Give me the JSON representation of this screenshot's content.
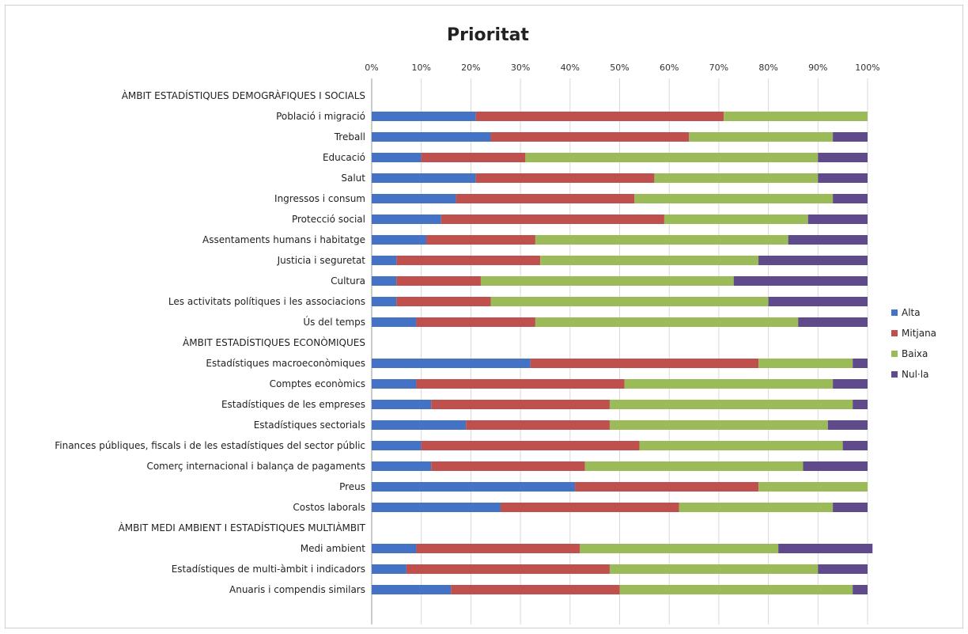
{
  "chart_data": {
    "type": "bar",
    "orientation": "horizontal",
    "stacked": true,
    "percent": true,
    "title": "Prioritat",
    "xlim": [
      0,
      100
    ],
    "x_ticks": [
      "0%",
      "10%",
      "20%",
      "30%",
      "40%",
      "50%",
      "60%",
      "70%",
      "80%",
      "90%",
      "100%"
    ],
    "grid": true,
    "legend_position": "right",
    "rows": [
      {
        "label": "ÀMBIT ESTADÍSTIQUES DEMOGRÀFIQUES I SOCIALS",
        "header": true
      },
      {
        "label": "Població i migració"
      },
      {
        "label": "Treball"
      },
      {
        "label": "Educació"
      },
      {
        "label": "Salut"
      },
      {
        "label": "Ingressos i consum"
      },
      {
        "label": "Protecció social"
      },
      {
        "label": "Assentaments humans i habitatge"
      },
      {
        "label": "Justicia i seguretat"
      },
      {
        "label": "Cultura"
      },
      {
        "label": "Les activitats polítiques i les associacions"
      },
      {
        "label": "Ús del temps"
      },
      {
        "label": "ÀMBIT ESTADÍSTIQUES ECONÒMIQUES",
        "header": true
      },
      {
        "label": "Estadístiques macroeconòmiques"
      },
      {
        "label": "Comptes econòmics"
      },
      {
        "label": "Estadístiques de les empreses"
      },
      {
        "label": "Estadístiques sectorials"
      },
      {
        "label": "Finances públiques, fiscals i de les estadístiques del sector públic"
      },
      {
        "label": "Comerç internacional i balança de pagaments"
      },
      {
        "label": "Preus"
      },
      {
        "label": "Costos laborals"
      },
      {
        "label": "ÀMBIT MEDI AMBIENT I ESTADÍSTIQUES MULTIÀMBIT",
        "header": true
      },
      {
        "label": "Medi ambient"
      },
      {
        "label": "Estadístiques de multi-àmbit i indicadors"
      },
      {
        "label": "Anuaris i compendis similars"
      }
    ],
    "series": [
      {
        "name": "Alta",
        "color": "#4472C4",
        "values": [
          null,
          21,
          24,
          10,
          21,
          17,
          14,
          11,
          5,
          5,
          5,
          9,
          null,
          32,
          9,
          12,
          19,
          10,
          12,
          41,
          26,
          null,
          9,
          7,
          16
        ]
      },
      {
        "name": "Mitjana",
        "color": "#C0504D",
        "values": [
          null,
          50,
          40,
          21,
          36,
          36,
          45,
          22,
          29,
          17,
          19,
          24,
          null,
          46,
          42,
          36,
          29,
          44,
          31,
          37,
          36,
          null,
          33,
          41,
          34
        ]
      },
      {
        "name": "Baixa",
        "color": "#9BBB59",
        "values": [
          null,
          29,
          29,
          59,
          33,
          40,
          29,
          51,
          44,
          51,
          56,
          53,
          null,
          19,
          42,
          49,
          44,
          41,
          44,
          22,
          31,
          null,
          40,
          42,
          47
        ]
      },
      {
        "name": "Nul·la",
        "color": "#5F4B8B",
        "values": [
          null,
          0,
          7,
          10,
          10,
          7,
          12,
          16,
          22,
          27,
          20,
          14,
          null,
          3,
          7,
          3,
          8,
          5,
          13,
          0,
          7,
          null,
          19,
          10,
          3
        ]
      }
    ]
  }
}
